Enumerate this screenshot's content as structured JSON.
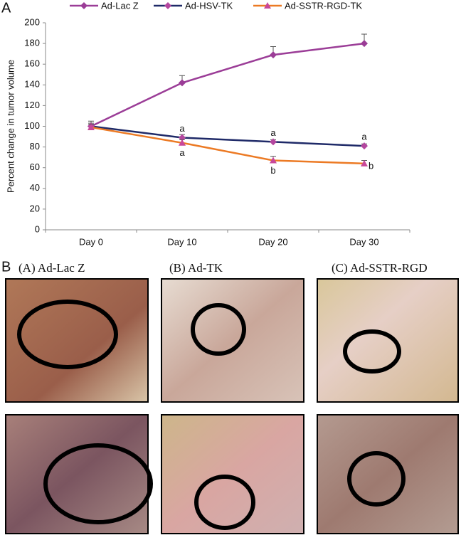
{
  "panel_a_label": "A",
  "chart_data": {
    "type": "line",
    "y_label": "Percent change in tumor volume",
    "categories": [
      "Day 0",
      "Day 10",
      "Day 20",
      "Day 30"
    ],
    "series": [
      {
        "name": "Ad-Lac Z",
        "color": "#9b3d97",
        "marker": "diamond",
        "marker_color": "#9b3d97",
        "values": [
          100,
          142,
          169,
          180
        ],
        "errors": [
          5,
          7,
          8,
          9
        ],
        "labels": [
          null,
          null,
          null,
          null
        ]
      },
      {
        "name": "Ad-HSV-TK",
        "color": "#1f2a68",
        "marker": "diamond",
        "marker_color": "#b4479f",
        "values": [
          100,
          89,
          85,
          81
        ],
        "errors": [
          3,
          3,
          2,
          2
        ],
        "labels": [
          null,
          "a",
          "a",
          "a"
        ]
      },
      {
        "name": "Ad-SSTR-RGD-TK",
        "color": "#ec7a24",
        "marker": "triangle",
        "marker_color": "#c8489a",
        "values": [
          99,
          84,
          67,
          64
        ],
        "errors": [
          3,
          3,
          4,
          3
        ],
        "labels": [
          null,
          "a",
          "b",
          "b"
        ]
      }
    ],
    "ylim": [
      0,
      200
    ],
    "yticks": [
      0,
      20,
      40,
      60,
      80,
      100,
      120,
      140,
      160,
      180,
      200
    ]
  },
  "panel_b": {
    "label": "B",
    "titles": [
      "(A) Ad-Lac Z",
      "(B) Ad-TK",
      "(C) Ad-SSTR-RGD"
    ]
  }
}
